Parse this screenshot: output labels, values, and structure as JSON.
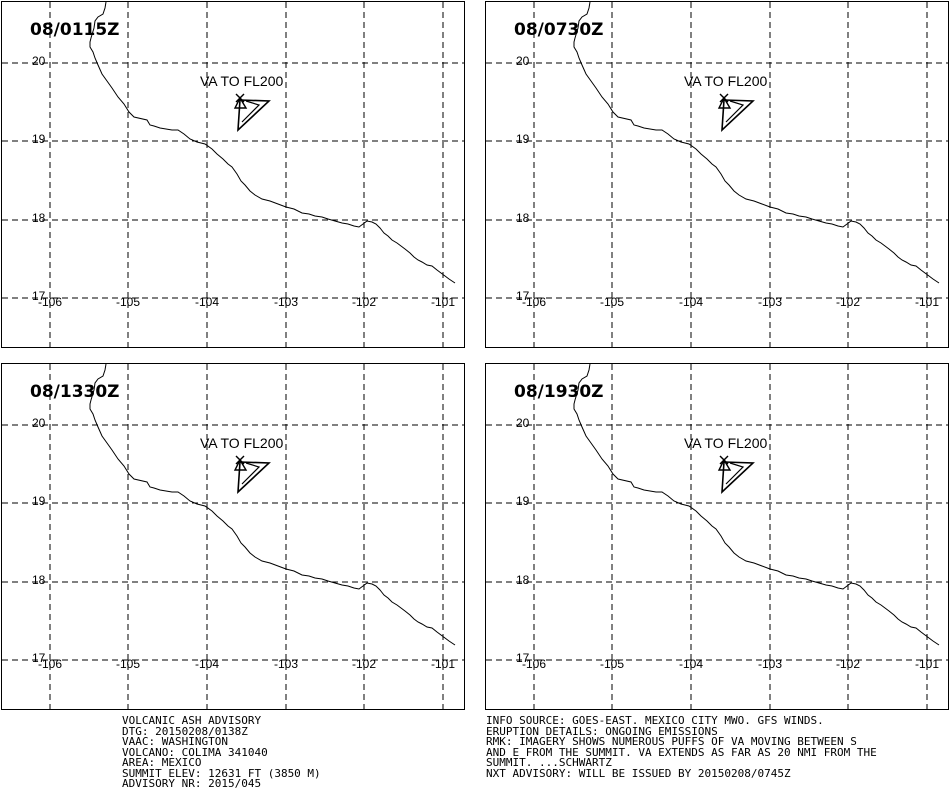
{
  "panels": [
    {
      "time": "08/0115Z"
    },
    {
      "time": "08/0730Z"
    },
    {
      "time": "08/1330Z"
    },
    {
      "time": "08/1930Z"
    }
  ],
  "ash_label": "VA TO FL200",
  "lat_labels": [
    "20",
    "19",
    "18",
    "17"
  ],
  "lon_labels": [
    "-106",
    "-105",
    "-104",
    "-103",
    "-102",
    "-101"
  ],
  "advisory_left": [
    "VOLCANIC ASH ADVISORY",
    "DTG: 20150208/0138Z",
    "VAAC: WASHINGTON",
    "VOLCANO: COLIMA 341040",
    "AREA: MEXICO",
    "SUMMIT ELEV: 12631 FT (3850 M)",
    "ADVISORY NR: 2015/045"
  ],
  "advisory_right": [
    "INFO SOURCE: GOES-EAST. MEXICO CITY MWO. GFS WINDS.",
    "ERUPTION DETAILS: ONGOING EMISSIONS",
    "RMK: IMAGERY SHOWS NUMEROUS PUFFS OF VA MOVING BETWEEN S",
    "AND E FROM THE SUMMIT. VA EXTENDS AS FAR AS 20 NMI FROM THE",
    "SUMMIT. ...SCHWARTZ",
    "NXT ADVISORY: WILL BE ISSUED BY 20150208/0745Z"
  ]
}
